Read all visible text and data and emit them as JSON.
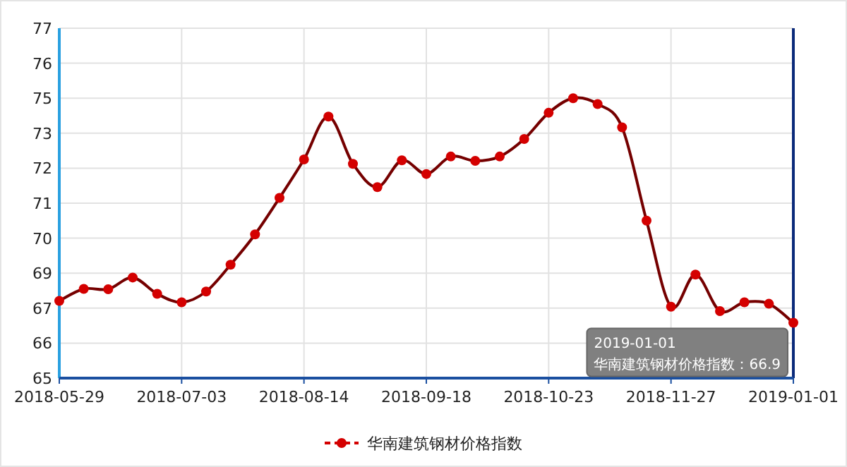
{
  "chart_data": {
    "type": "line",
    "categories": [
      "2018-05-29",
      null,
      null,
      null,
      null,
      "2018-07-03",
      null,
      null,
      null,
      null,
      "2018-08-14",
      null,
      null,
      null,
      null,
      "2018-09-18",
      null,
      null,
      null,
      null,
      "2018-10-23",
      null,
      null,
      null,
      null,
      "2018-11-27",
      null,
      null,
      null,
      null,
      "2019-01-01"
    ],
    "series": [
      {
        "name": "华南建筑钢材价格指数",
        "color": "#d40000",
        "values": [
          67.65,
          68.06,
          68.05,
          68.45,
          67.89,
          67.6,
          67.97,
          68.89,
          69.93,
          71.18,
          72.5,
          73.97,
          72.35,
          71.55,
          72.47,
          72.0,
          72.6,
          72.45,
          72.6,
          73.2,
          74.1,
          74.6,
          74.4,
          73.6,
          70.4,
          67.45,
          68.55,
          67.3,
          67.6,
          67.55,
          66.9
        ]
      }
    ],
    "ylim": [
      65,
      77
    ],
    "yticks": [
      65,
      {
        "value": 66.2,
        "label": "66"
      },
      {
        "value": 67.4,
        "label": "67"
      },
      {
        "value": 68.6,
        "label": "69"
      },
      {
        "value": 69.8,
        "label": "70"
      },
      71,
      {
        "value": 72.2,
        "label": "72"
      },
      {
        "value": 73.4,
        "label": "73"
      },
      {
        "value": 74.6,
        "label": "75"
      },
      {
        "value": 75.8,
        "label": "76"
      },
      77
    ],
    "grid": true,
    "legend": "bottom",
    "marker": "circle",
    "line_style": "solid",
    "annotations": [
      {
        "text": "华南建筑钢材价格指数：66.9",
        "x": "2019-01-01",
        "y": 66.9
      }
    ]
  }
}
